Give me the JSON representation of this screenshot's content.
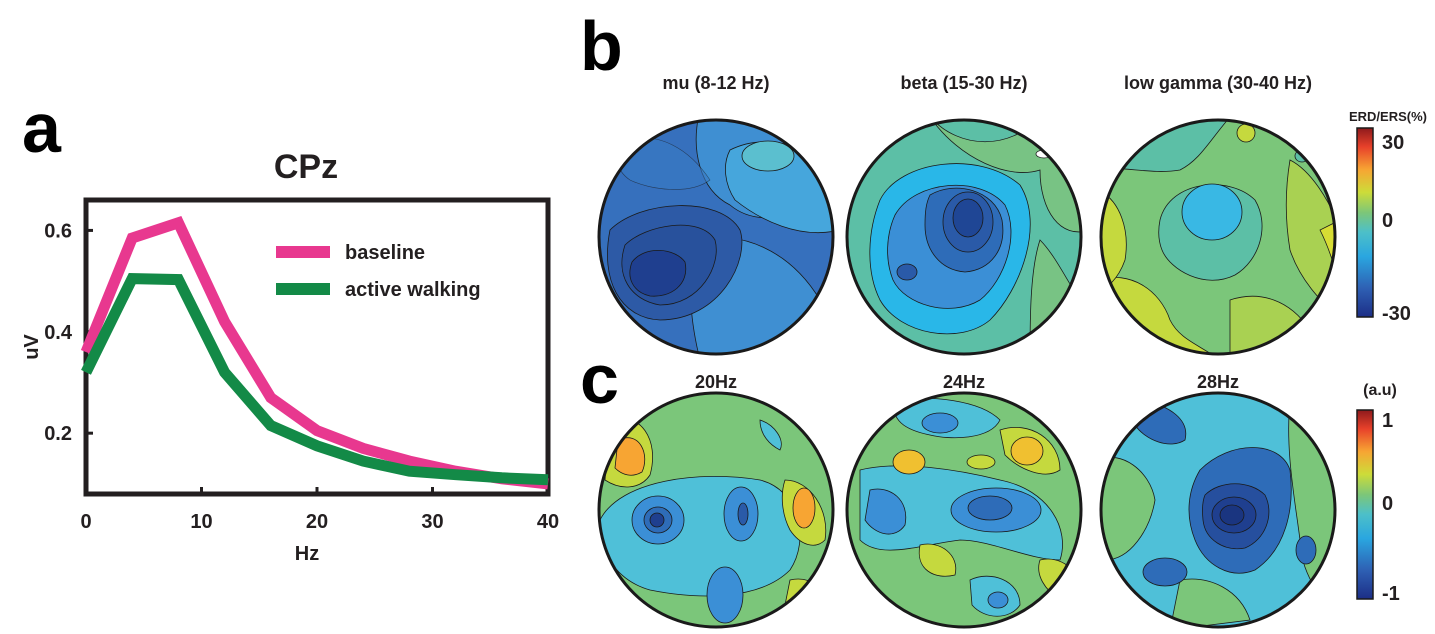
{
  "panels": {
    "a": "a",
    "b": "b",
    "c": "c"
  },
  "chart_data": [
    {
      "type": "line",
      "title": "CPz",
      "xlabel": "Hz",
      "ylabel": "uV",
      "xlim": [
        0,
        40
      ],
      "ylim": [
        0.08,
        0.66
      ],
      "xticks": [
        "0",
        "10",
        "20",
        "30",
        "40"
      ],
      "yticks": [
        "0.2",
        "0.4",
        "0.6"
      ],
      "grid": false,
      "legend_position": "top-right",
      "series": [
        {
          "name": "baseline",
          "color": "#e8388f",
          "x": [
            0,
            4,
            8,
            12,
            16,
            20,
            24,
            28,
            32,
            36,
            40
          ],
          "values": [
            0.36,
            0.585,
            0.615,
            0.42,
            0.27,
            0.205,
            0.17,
            0.145,
            0.125,
            0.11,
            0.1
          ]
        },
        {
          "name": "active walking",
          "color": "#138a47",
          "x": [
            0,
            4,
            8,
            12,
            16,
            20,
            24,
            28,
            32,
            36,
            40
          ],
          "values": [
            0.32,
            0.505,
            0.503,
            0.32,
            0.215,
            0.175,
            0.145,
            0.125,
            0.118,
            0.112,
            0.108
          ]
        }
      ]
    },
    {
      "type": "heatmap",
      "titles": [
        "mu (8-12 Hz)",
        "beta (15-30 Hz)",
        "low gamma (30-40 Hz)"
      ],
      "colorbar_label": "ERD/ERS(%)",
      "colorbar_ticks": [
        "30",
        "0",
        "-30"
      ],
      "colorbar_range": [
        -30,
        30
      ],
      "colormap": "jet"
    },
    {
      "type": "heatmap",
      "titles": [
        "20Hz",
        "24Hz",
        "28Hz"
      ],
      "colorbar_label": "(a.u)",
      "colorbar_ticks": [
        "1",
        "0",
        "-1"
      ],
      "colorbar_range": [
        -1,
        1
      ],
      "colormap": "jet"
    }
  ]
}
